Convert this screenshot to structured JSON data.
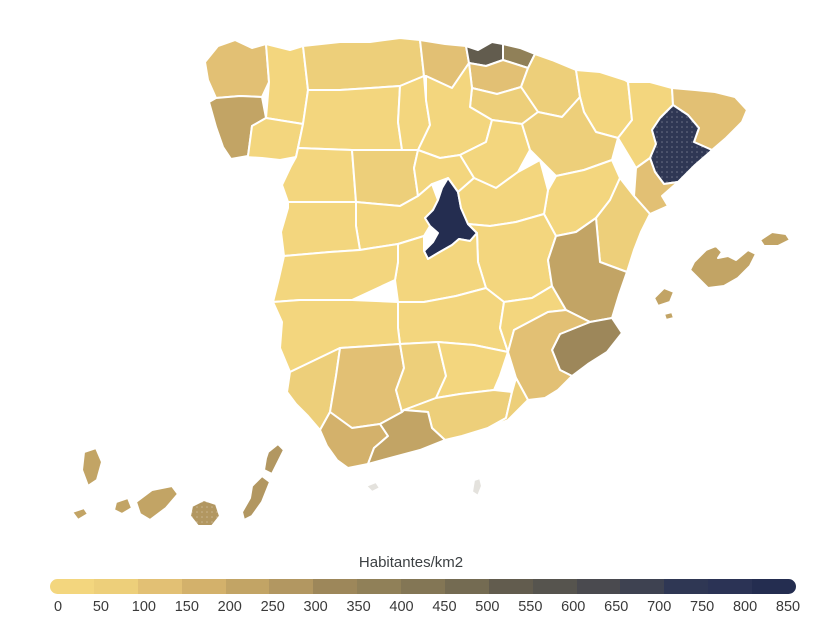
{
  "legend": {
    "title": "Habitantes/km2",
    "min": 0,
    "max": 850,
    "step": 50,
    "tick_labels": [
      "0",
      "50",
      "100",
      "150",
      "200",
      "250",
      "300",
      "350",
      "400",
      "450",
      "500",
      "550",
      "600",
      "650",
      "700",
      "750",
      "800",
      "850"
    ],
    "bin_colors": [
      "#f3d67e",
      "#edcf7a",
      "#e2c074",
      "#d3b16b",
      "#c2a465",
      "#b29761",
      "#9d875a",
      "#908058",
      "#837655",
      "#746b52",
      "#625c4e",
      "#56544e",
      "#4a4a4f",
      "#3e4251",
      "#2f3754",
      "#2b3355",
      "#242d50"
    ]
  },
  "map": {
    "border_color": "#ffffff",
    "background": "#ffffff",
    "no_data_color": "#e4e2dd"
  },
  "chart_data": {
    "type": "choropleth",
    "title": "Habitantes/km2",
    "unit": "habitantes/km2",
    "scale": {
      "min": 0,
      "max": 850,
      "bin_width": 50
    },
    "regions": [
      {
        "id": "coruna",
        "name": "A Coruña",
        "value": 141
      },
      {
        "id": "lugo",
        "name": "Lugo",
        "value": 34
      },
      {
        "id": "ourense",
        "name": "Ourense",
        "value": 42
      },
      {
        "id": "pontevedra",
        "name": "Pontevedra",
        "value": 209
      },
      {
        "id": "asturias",
        "name": "Asturias",
        "value": 97
      },
      {
        "id": "cantabria",
        "name": "Cantabria",
        "value": 109
      },
      {
        "id": "vizcaya",
        "name": "Vizcaya",
        "value": 515
      },
      {
        "id": "guipuzcoa",
        "name": "Guipúzcoa",
        "value": 357
      },
      {
        "id": "alava",
        "name": "Álava",
        "value": 107
      },
      {
        "id": "navarra",
        "name": "Navarra",
        "value": 62
      },
      {
        "id": "rioja",
        "name": "La Rioja",
        "value": 62
      },
      {
        "id": "leon",
        "name": "León",
        "value": 30
      },
      {
        "id": "palencia",
        "name": "Palencia",
        "value": 20
      },
      {
        "id": "burgos",
        "name": "Burgos",
        "value": 25
      },
      {
        "id": "zamora",
        "name": "Zamora",
        "value": 17
      },
      {
        "id": "valladolid",
        "name": "Valladolid",
        "value": 64
      },
      {
        "id": "soria",
        "name": "Soria",
        "value": 9
      },
      {
        "id": "segovia",
        "name": "Segovia",
        "value": 22
      },
      {
        "id": "avila",
        "name": "Ávila",
        "value": 20
      },
      {
        "id": "salamanca",
        "name": "Salamanca",
        "value": 27
      },
      {
        "id": "madrid",
        "name": "Madrid",
        "value": 830
      },
      {
        "id": "guadalajara",
        "name": "Guadalajara",
        "value": 21
      },
      {
        "id": "cuenca",
        "name": "Cuenca",
        "value": 12
      },
      {
        "id": "toledo",
        "name": "Toledo",
        "value": 45
      },
      {
        "id": "ciudadreal",
        "name": "Ciudad Real",
        "value": 25
      },
      {
        "id": "albacete",
        "name": "Albacete",
        "value": 26
      },
      {
        "id": "huesca",
        "name": "Huesca",
        "value": 14
      },
      {
        "id": "zaragoza",
        "name": "Zaragoza",
        "value": 56
      },
      {
        "id": "teruel",
        "name": "Teruel",
        "value": 9
      },
      {
        "id": "lleida",
        "name": "Lleida",
        "value": 36
      },
      {
        "id": "girona",
        "name": "Girona",
        "value": 128
      },
      {
        "id": "barcelona",
        "name": "Barcelona",
        "value": 741
      },
      {
        "id": "tarragona",
        "name": "Tarragona",
        "value": 126
      },
      {
        "id": "castellon",
        "name": "Castellón",
        "value": 87
      },
      {
        "id": "valencia",
        "name": "Valencia",
        "value": 236
      },
      {
        "id": "alicante",
        "name": "Alicante",
        "value": 318
      },
      {
        "id": "murcia",
        "name": "Murcia",
        "value": 131
      },
      {
        "id": "caceres",
        "name": "Cáceres",
        "value": 20
      },
      {
        "id": "badajoz",
        "name": "Badajoz",
        "value": 31
      },
      {
        "id": "huelva",
        "name": "Huelva",
        "value": 51
      },
      {
        "id": "sevilla",
        "name": "Sevilla",
        "value": 139
      },
      {
        "id": "cordoba",
        "name": "Córdoba",
        "value": 57
      },
      {
        "id": "jaen",
        "name": "Jaén",
        "value": 47
      },
      {
        "id": "granada",
        "name": "Granada",
        "value": 73
      },
      {
        "id": "almeria",
        "name": "Almería",
        "value": 81
      },
      {
        "id": "malaga",
        "name": "Málaga",
        "value": 228
      },
      {
        "id": "cadiz",
        "name": "Cádiz",
        "value": 168
      },
      {
        "id": "baleares",
        "name": "Illes Balears",
        "value": 229
      },
      {
        "id": "laspalmas",
        "name": "Las Palmas",
        "value": 271
      },
      {
        "id": "tenerife",
        "name": "Santa Cruz de Tenerife",
        "value": 203
      },
      {
        "id": "ceuta",
        "name": "Ceuta",
        "value": null
      },
      {
        "id": "melilla",
        "name": "Melilla",
        "value": null
      }
    ]
  }
}
